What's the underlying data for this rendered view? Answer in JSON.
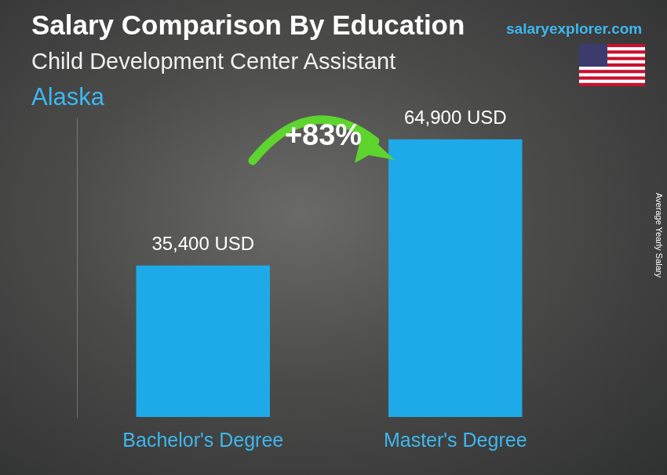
{
  "chart_data": {
    "type": "bar",
    "title": "Salary Comparison By Education",
    "subtitle": "Child Development Center Assistant",
    "region": "Alaska",
    "source": "salaryexplorer.com",
    "y_label": "Average Yearly Salary",
    "annotation": "+83%",
    "categories": [
      "Bachelor's Degree",
      "Master's Degree"
    ],
    "values": [
      35400,
      64900
    ],
    "value_labels": [
      "35,400 USD",
      "64,900 USD"
    ],
    "color": "#1eaae8",
    "ylim": [
      0,
      70000
    ],
    "grid": false,
    "data_labels": true,
    "tick_labels": "x"
  }
}
